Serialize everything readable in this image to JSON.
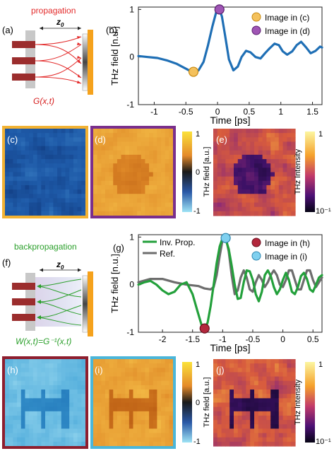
{
  "panel_labels": {
    "a": "(a)",
    "b": "(b)",
    "c": "(c)",
    "d": "(d)",
    "e": "(e)",
    "f": "(f)",
    "g": "(g)",
    "h": "(h)",
    "i": "(i)",
    "j": "(j)"
  },
  "schematic_top": {
    "title": "propagation",
    "distance": "z",
    "distance_sub": "0",
    "kernel": "G(x,t)"
  },
  "schematic_bottom": {
    "title": "backpropagation",
    "distance": "z",
    "distance_sub": "0",
    "kernel": "W(x,t)=G⁻¹(x,t)"
  },
  "colors": {
    "propagation": "#e32b2b",
    "backpropagation": "#2ca02c",
    "detector": "#f5a21c",
    "emitter_bar": "#9b2d2d",
    "trace_b": "#1f6fb5",
    "inv_prop": "#23a03b",
    "ref": "#6d6d6d",
    "frame_c": "#f2b233",
    "frame_d": "#7a2f8c",
    "frame_h": "#8e1e2e",
    "frame_i": "#4bb6d9",
    "marker_c": "#f4c15c",
    "marker_d": "#9f55b4",
    "marker_h": "#b3273c",
    "marker_i": "#7fd0ef"
  },
  "colorbars": {
    "field_top": {
      "label": "THz field [a.u.]",
      "ticks": [
        "1",
        "0",
        "-1"
      ]
    },
    "intensity_top": {
      "label": "THz Intensity",
      "ticks": [
        "1",
        "10⁻¹"
      ]
    },
    "field_bottom": {
      "label": "THz field [a.u.]",
      "ticks": [
        "1",
        "0",
        "-1"
      ]
    },
    "intensity_bottom": {
      "label": "THz Intensity",
      "ticks": [
        "1",
        "10⁻¹"
      ]
    }
  },
  "chart_data": [
    {
      "type": "line",
      "panel": "b",
      "xlabel": "Time [ps]",
      "ylabel": "THz field [n.u.]",
      "xlim": [
        -1.25,
        1.65
      ],
      "ylim": [
        -1,
        1.05
      ],
      "xticks": [
        "-1",
        "-0.5",
        "0",
        "0.5",
        "1",
        "1.5"
      ],
      "yticks": [
        "1",
        "0",
        "-1"
      ],
      "legend": [
        "Image in (c)",
        "Image in (d)"
      ],
      "legend_position": "top-right",
      "series": [
        {
          "x": [
            -1.25,
            -1.1,
            -0.95,
            -0.8,
            -0.65,
            -0.52,
            -0.42,
            -0.36,
            -0.3,
            -0.22,
            -0.15,
            -0.08,
            -0.02,
            0.03,
            0.07,
            0.12,
            0.18,
            0.25,
            0.32,
            0.38,
            0.45,
            0.52,
            0.6,
            0.68,
            0.75,
            0.82,
            0.9,
            0.97,
            1.03,
            1.1,
            1.18,
            1.25,
            1.32,
            1.4,
            1.47,
            1.55,
            1.62,
            1.65
          ],
          "y": [
            0.02,
            0.0,
            -0.02,
            -0.07,
            -0.14,
            -0.23,
            -0.3,
            -0.32,
            -0.28,
            -0.1,
            0.25,
            0.65,
            0.95,
            1.0,
            0.85,
            0.45,
            -0.05,
            -0.28,
            -0.2,
            0.0,
            0.13,
            0.1,
            0.0,
            -0.03,
            0.08,
            0.18,
            0.28,
            0.25,
            0.12,
            0.05,
            0.12,
            0.25,
            0.32,
            0.2,
            0.08,
            0.13,
            0.22,
            0.2
          ]
        }
      ],
      "markers": [
        {
          "x": -0.38,
          "y": -0.31,
          "legend": "Image in (c)"
        },
        {
          "x": 0.03,
          "y": 1.0,
          "legend": "Image in (d)"
        }
      ]
    },
    {
      "type": "line",
      "panel": "g",
      "xlabel": "Time [ps]",
      "ylabel": "THz field [n.u.]",
      "xlim": [
        -2.4,
        0.65
      ],
      "ylim": [
        -1,
        1.05
      ],
      "xticks": [
        "-2",
        "-1.5",
        "-1",
        "-0.5",
        "0",
        "0.5"
      ],
      "yticks": [
        "1",
        "0",
        "-1"
      ],
      "legend": [
        "Inv. Prop.",
        "Ref.",
        "Image in (h)",
        "Image in (i)"
      ],
      "legend_position": "top",
      "series": [
        {
          "name": "Inv. Prop.",
          "x": [
            -2.4,
            -2.3,
            -2.2,
            -2.1,
            -2.0,
            -1.9,
            -1.8,
            -1.7,
            -1.6,
            -1.5,
            -1.42,
            -1.35,
            -1.3,
            -1.25,
            -1.2,
            -1.15,
            -1.1,
            -1.05,
            -1.0,
            -0.95,
            -0.9,
            -0.85,
            -0.8,
            -0.75,
            -0.7,
            -0.65,
            -0.6,
            -0.55,
            -0.5,
            -0.45,
            -0.4,
            -0.35,
            -0.3,
            -0.25,
            -0.2,
            -0.15,
            -0.1,
            -0.05,
            0.0,
            0.05,
            0.1,
            0.15,
            0.2,
            0.25,
            0.3,
            0.35,
            0.4,
            0.45,
            0.5,
            0.55,
            0.6,
            0.65
          ],
          "y": [
            0.0,
            0.05,
            0.08,
            0.0,
            -0.12,
            -0.2,
            -0.15,
            0.0,
            0.05,
            -0.2,
            -0.55,
            -0.85,
            -0.92,
            -0.8,
            -0.45,
            0.0,
            0.45,
            0.8,
            0.98,
            0.95,
            0.75,
            0.4,
            0.0,
            -0.3,
            -0.28,
            0.05,
            0.3,
            0.28,
            0.1,
            -0.2,
            -0.35,
            -0.15,
            0.2,
            0.3,
            0.18,
            -0.05,
            -0.2,
            -0.1,
            0.1,
            0.25,
            0.1,
            -0.15,
            -0.2,
            -0.05,
            0.18,
            0.25,
            0.12,
            -0.1,
            -0.15,
            0.0,
            0.15,
            0.2
          ]
        },
        {
          "name": "Ref.",
          "x": [
            -2.4,
            -2.2,
            -2.0,
            -1.8,
            -1.6,
            -1.4,
            -1.3,
            -1.2,
            -1.15,
            -1.1,
            -1.05,
            -1.0,
            -0.95,
            -0.9,
            -0.85,
            -0.8,
            -0.75,
            -0.7,
            -0.65,
            -0.6,
            -0.55,
            -0.5,
            -0.45,
            -0.4,
            -0.35,
            -0.3,
            -0.25,
            -0.2,
            -0.15,
            -0.1,
            -0.05,
            0.0,
            0.05,
            0.1,
            0.15,
            0.2,
            0.25,
            0.3,
            0.35,
            0.4,
            0.45,
            0.5,
            0.55,
            0.6,
            0.65
          ],
          "y": [
            0.05,
            0.12,
            0.12,
            0.05,
            0.0,
            -0.03,
            -0.08,
            -0.1,
            -0.05,
            0.2,
            0.6,
            0.95,
            1.0,
            0.7,
            0.2,
            -0.2,
            -0.12,
            0.15,
            0.3,
            0.15,
            -0.1,
            -0.15,
            0.05,
            0.2,
            0.1,
            -0.05,
            0.05,
            0.2,
            0.3,
            0.2,
            0.0,
            -0.05,
            0.1,
            0.3,
            0.3,
            0.1,
            -0.1,
            -0.1,
            0.1,
            0.3,
            0.3,
            0.1,
            -0.05,
            0.05,
            0.15
          ]
        }
      ],
      "markers": [
        {
          "x": -1.3,
          "y": -0.92,
          "legend": "Image in (h)"
        },
        {
          "x": -0.95,
          "y": 0.98,
          "legend": "Image in (i)"
        }
      ]
    }
  ]
}
